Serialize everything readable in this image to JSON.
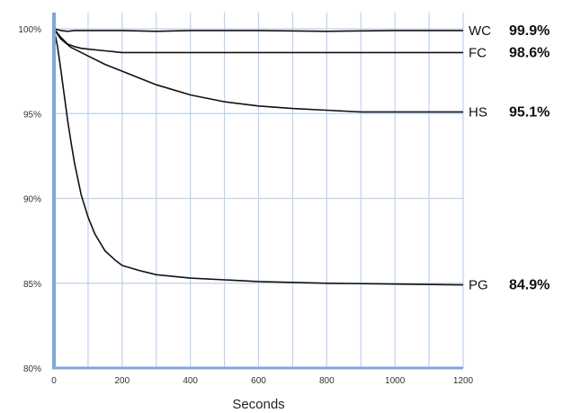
{
  "chart_data": {
    "type": "line",
    "title": "",
    "xlabel": "Seconds",
    "ylabel": "",
    "xlim": [
      0,
      1200
    ],
    "ylim": [
      80,
      100
    ],
    "grid": true,
    "axis_color": "#7ea7dc",
    "grid_color": "#bcd3ee",
    "line_color": "#111111",
    "x_ticks": [
      {
        "value": 0,
        "label": "0"
      },
      {
        "value": 200,
        "label": "200"
      },
      {
        "value": 400,
        "label": "400"
      },
      {
        "value": 600,
        "label": "600"
      },
      {
        "value": 800,
        "label": "800"
      },
      {
        "value": 1000,
        "label": "1000"
      },
      {
        "value": 1200,
        "label": "1200"
      }
    ],
    "y_ticks": [
      {
        "value": 80,
        "label": "80%"
      },
      {
        "value": 85,
        "label": "85%"
      },
      {
        "value": 90,
        "label": "90%"
      },
      {
        "value": 95,
        "label": "95%"
      },
      {
        "value": 100,
        "label": "100%"
      }
    ],
    "series": [
      {
        "name": "WC",
        "final_label": "99.9%",
        "x": [
          0,
          20,
          40,
          60,
          100,
          200,
          300,
          400,
          600,
          800,
          1000,
          1200
        ],
        "y": [
          100,
          99.9,
          99.85,
          99.9,
          99.9,
          99.9,
          99.85,
          99.9,
          99.9,
          99.85,
          99.9,
          99.9
        ]
      },
      {
        "name": "FC",
        "final_label": "98.6%",
        "x": [
          0,
          20,
          40,
          60,
          80,
          100,
          150,
          200,
          300,
          400,
          600,
          800,
          1000,
          1200
        ],
        "y": [
          100,
          99.5,
          99.1,
          98.95,
          98.85,
          98.8,
          98.7,
          98.6,
          98.6,
          98.6,
          98.6,
          98.6,
          98.6,
          98.6
        ]
      },
      {
        "name": "HS",
        "final_label": "95.1%",
        "x": [
          0,
          20,
          50,
          100,
          150,
          200,
          300,
          400,
          500,
          600,
          700,
          800,
          900,
          1000,
          1100,
          1200
        ],
        "y": [
          100,
          99.4,
          98.9,
          98.4,
          97.9,
          97.5,
          96.7,
          96.1,
          95.7,
          95.45,
          95.3,
          95.2,
          95.1,
          95.1,
          95.1,
          95.1
        ]
      },
      {
        "name": "PG",
        "final_label": "84.9%",
        "x": [
          0,
          10,
          20,
          30,
          40,
          50,
          60,
          80,
          100,
          120,
          150,
          180,
          200,
          250,
          300,
          400,
          500,
          600,
          800,
          1000,
          1200
        ],
        "y": [
          100,
          99.0,
          97.6,
          96.1,
          94.6,
          93.3,
          92.1,
          90.2,
          88.9,
          87.9,
          86.9,
          86.35,
          86.05,
          85.75,
          85.5,
          85.3,
          85.2,
          85.1,
          85.0,
          84.95,
          84.9
        ]
      }
    ]
  }
}
